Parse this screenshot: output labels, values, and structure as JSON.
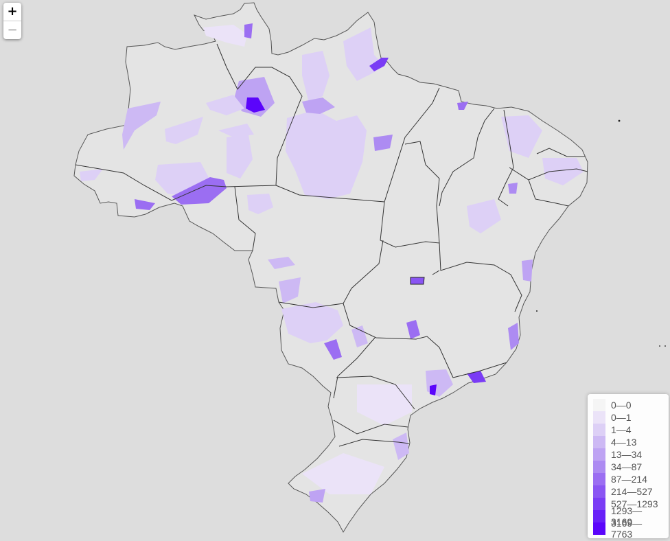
{
  "zoom": {
    "in_label": "+",
    "out_label": "−"
  },
  "legend": {
    "items": [
      {
        "label": "0—0",
        "color": "#f5f5f5"
      },
      {
        "label": "0—1",
        "color": "#ebe3f8"
      },
      {
        "label": "1—4",
        "color": "#ddd0f6"
      },
      {
        "label": "4—13",
        "color": "#cdb9f4"
      },
      {
        "label": "13—34",
        "color": "#bea3f3"
      },
      {
        "label": "34—87",
        "color": "#ad8bf2"
      },
      {
        "label": "87—214",
        "color": "#9b6ef2"
      },
      {
        "label": "214—527",
        "color": "#8a55f3"
      },
      {
        "label": "527—1293",
        "color": "#7a3cf5"
      },
      {
        "label": "1293—3169",
        "color": "#6820f8"
      },
      {
        "label": "3169—7763",
        "color": "#5b05fb"
      }
    ]
  },
  "map": {
    "region": "Brazil",
    "land_color": "#e3e3e3",
    "background_color": "#dddddd",
    "border_color": "#333333"
  }
}
